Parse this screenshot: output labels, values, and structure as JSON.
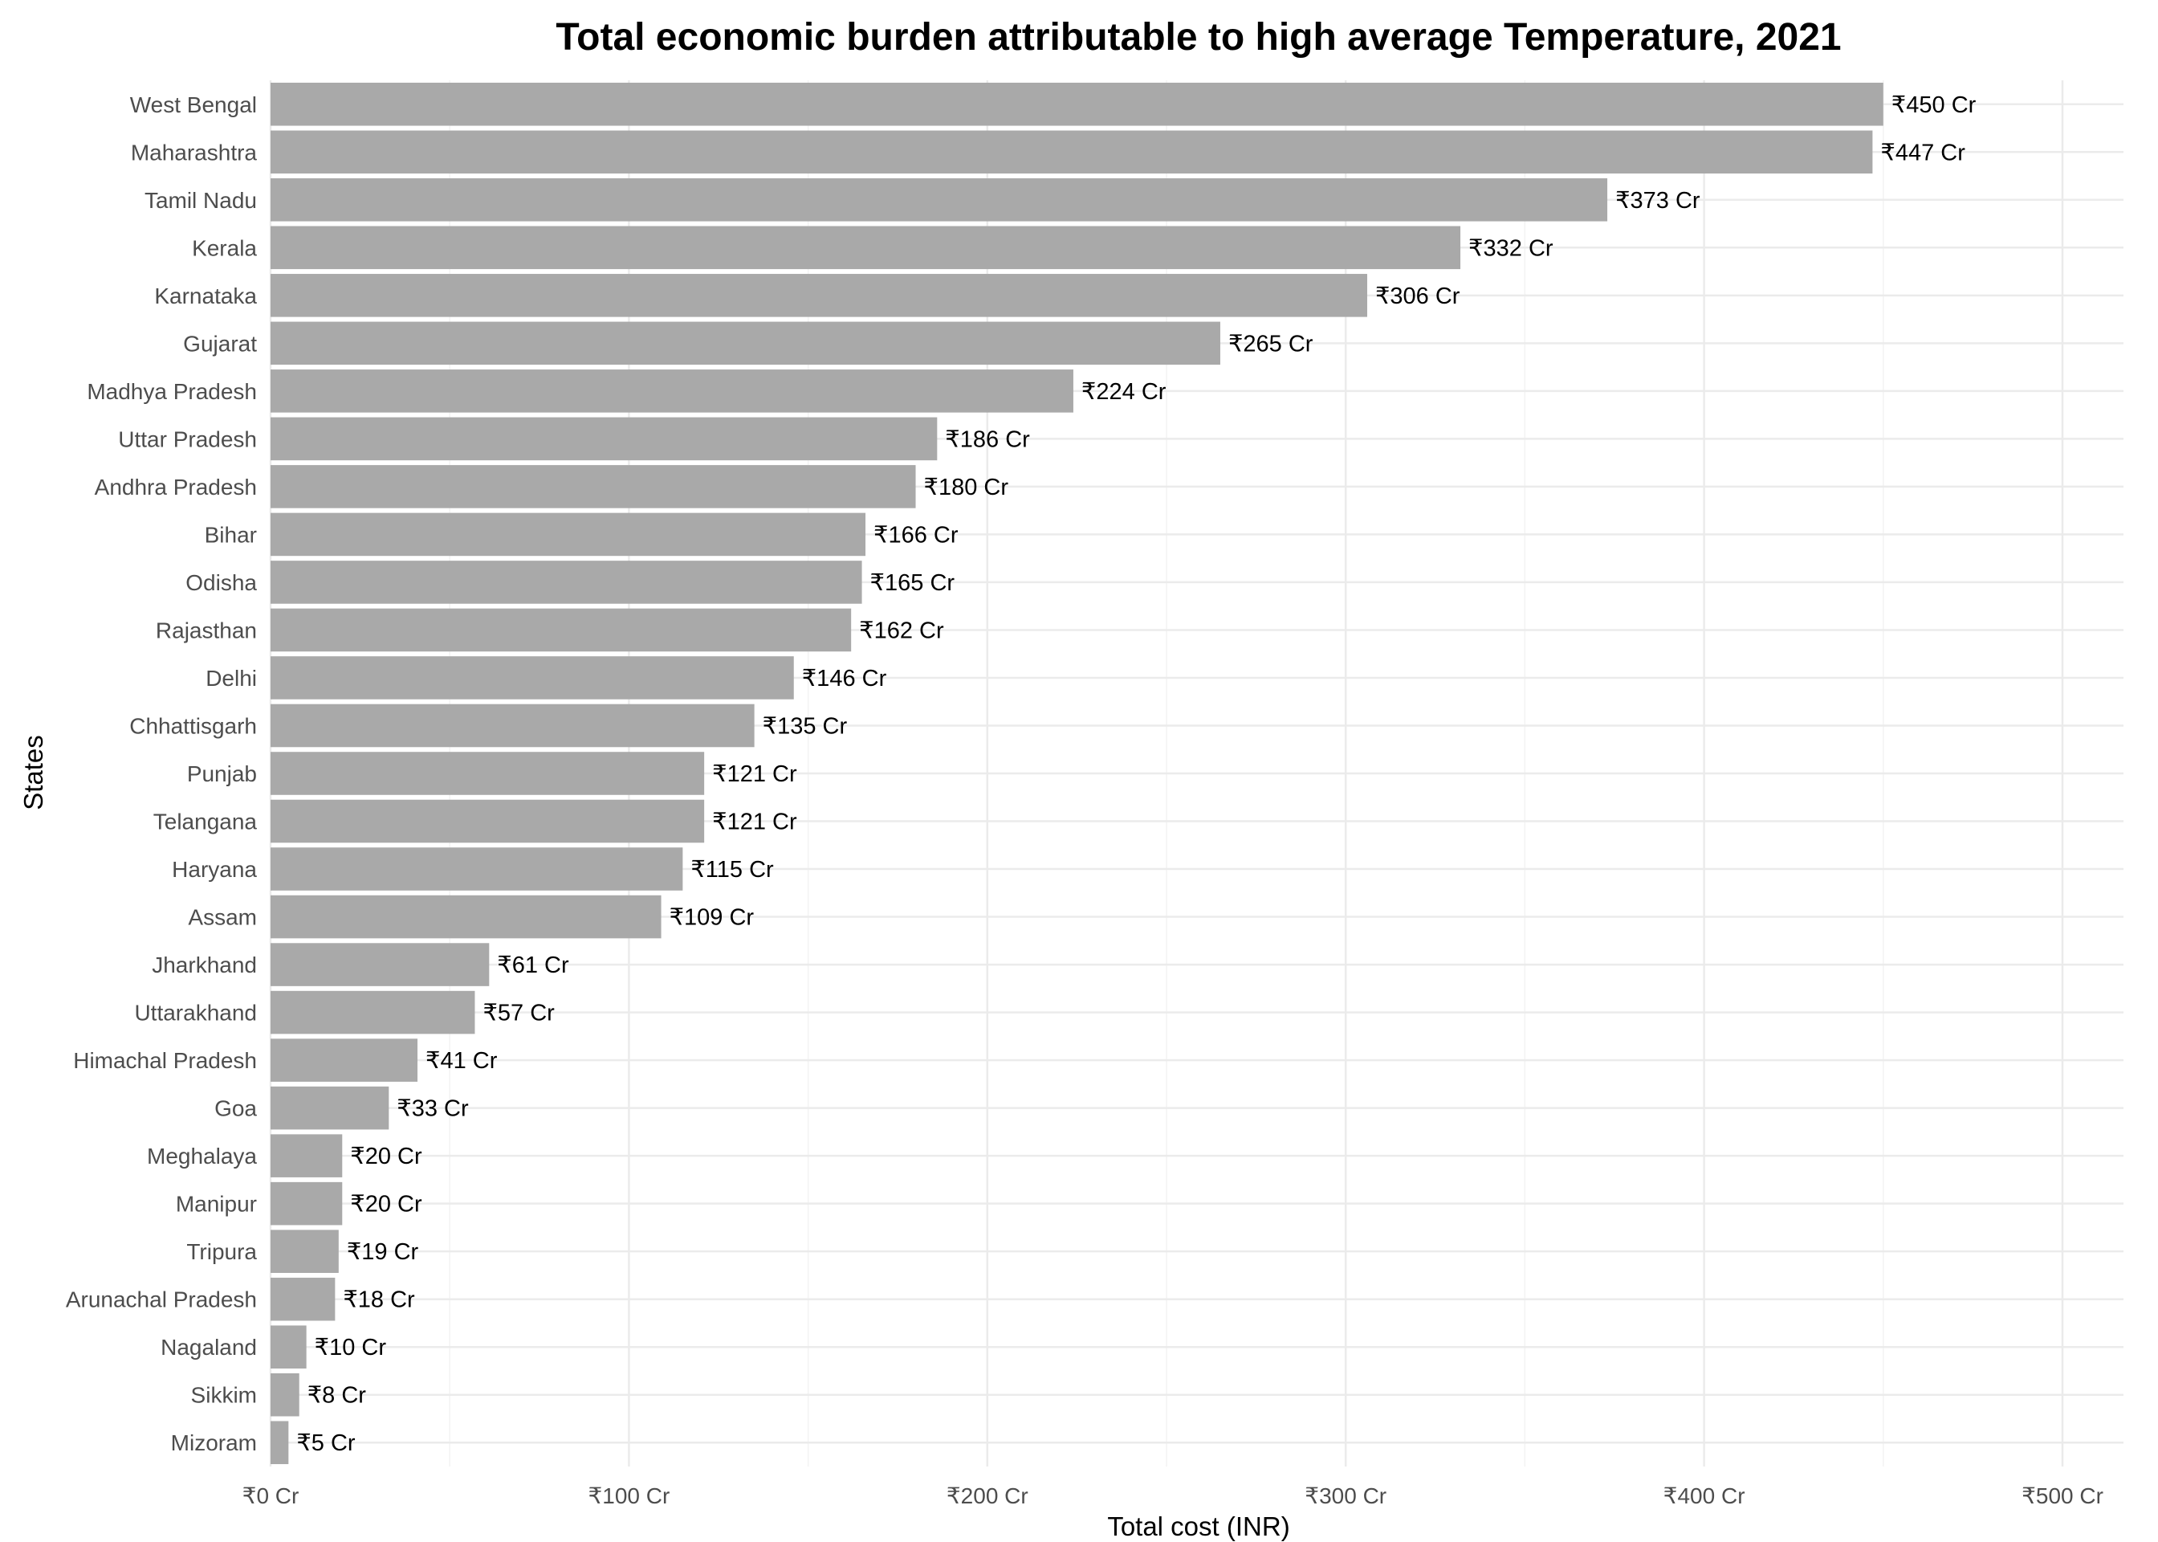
{
  "colors": {
    "bar": "#a9a9a9",
    "grid_major": "#ebebeb",
    "grid_minor": "#f3f3f3",
    "tick_text": "#4d4d4d",
    "label_text": "#000000",
    "background": "#ffffff"
  },
  "chart_data": {
    "type": "bar",
    "orientation": "horizontal",
    "title": "Total economic burden attributable to high average Temperature, 2021",
    "xlabel": "Total cost (INR)",
    "ylabel": "States",
    "xlim": [
      0,
      520
    ],
    "grid": true,
    "x_ticks": [
      0,
      100,
      200,
      300,
      400,
      500
    ],
    "x_tick_labels": [
      "₹0 Cr",
      "₹100 Cr",
      "₹200 Cr",
      "₹300 Cr",
      "₹400 Cr",
      "₹500 Cr"
    ],
    "categories": [
      "West Bengal",
      "Maharashtra",
      "Tamil Nadu",
      "Kerala",
      "Karnataka",
      "Gujarat",
      "Madhya Pradesh",
      "Uttar Pradesh",
      "Andhra Pradesh",
      "Bihar",
      "Odisha",
      "Rajasthan",
      "Delhi",
      "Chhattisgarh",
      "Punjab",
      "Telangana",
      "Haryana",
      "Assam",
      "Jharkhand",
      "Uttarakhand",
      "Himachal Pradesh",
      "Goa",
      "Meghalaya",
      "Manipur",
      "Tripura",
      "Arunachal Pradesh",
      "Nagaland",
      "Sikkim",
      "Mizoram"
    ],
    "values": [
      450,
      447,
      373,
      332,
      306,
      265,
      224,
      186,
      180,
      166,
      165,
      162,
      146,
      135,
      121,
      121,
      115,
      109,
      61,
      57,
      41,
      33,
      20,
      20,
      19,
      18,
      10,
      8,
      5
    ],
    "labels": [
      "₹450 Cr",
      "₹447 Cr",
      "₹373 Cr",
      "₹332 Cr",
      "₹306 Cr",
      "₹265 Cr",
      "₹224 Cr",
      "₹186 Cr",
      "₹180 Cr",
      "₹166 Cr",
      "₹165 Cr",
      "₹162 Cr",
      "₹146 Cr",
      "₹135 Cr",
      "₹121 Cr",
      "₹121 Cr",
      "₹115 Cr",
      "₹109 Cr",
      "₹61 Cr",
      "₹57 Cr",
      "₹41 Cr",
      "₹33 Cr",
      "₹20 Cr",
      "₹20 Cr",
      "₹19 Cr",
      "₹18 Cr",
      "₹10 Cr",
      "₹8 Cr",
      "₹5 Cr"
    ]
  }
}
